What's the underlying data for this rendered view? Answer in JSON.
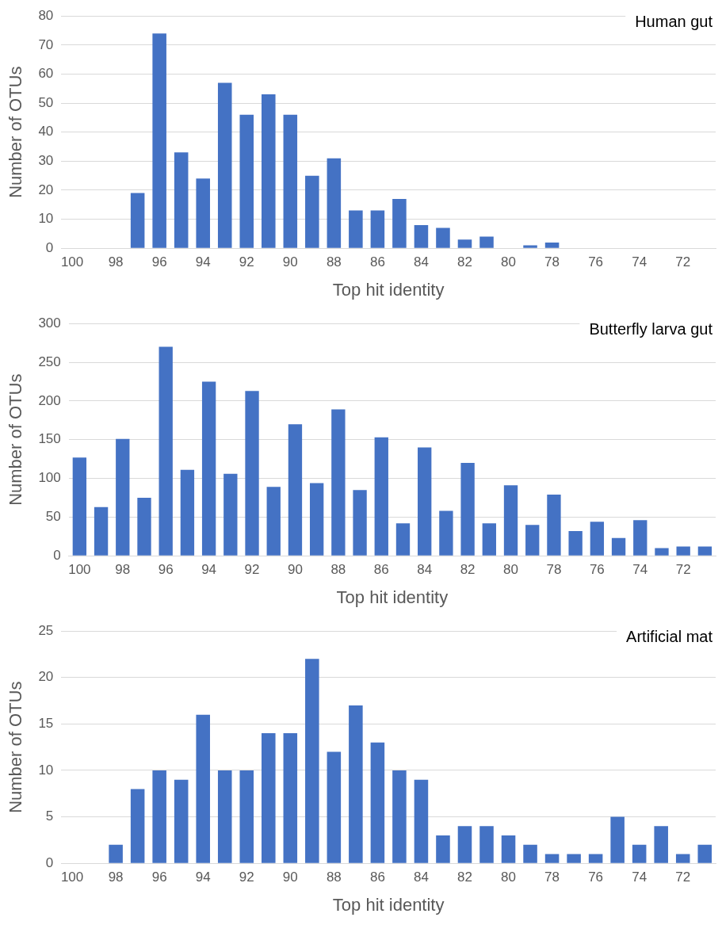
{
  "chart_data": [
    {
      "type": "bar",
      "title": "Human gut",
      "xlabel": "Top hit identity",
      "ylabel": "Number of OTUs",
      "categories": [
        "100",
        null,
        "98",
        null,
        "96",
        null,
        "94",
        null,
        "92",
        null,
        "90",
        null,
        "88",
        null,
        "86",
        null,
        "84",
        null,
        "82",
        null,
        "80",
        null,
        "78",
        null,
        "76",
        null,
        "74",
        null,
        "72",
        null
      ],
      "series": [
        {
          "color": "#4472c4",
          "values": [
            0,
            0,
            0,
            19,
            74,
            33,
            24,
            57,
            46,
            53,
            46,
            25,
            31,
            13,
            13,
            17,
            8,
            7,
            3,
            4,
            0,
            1,
            2,
            0,
            0,
            0,
            0,
            0,
            0,
            0
          ]
        }
      ],
      "ylim": [
        0,
        80
      ],
      "yticks": [
        0,
        10,
        20,
        30,
        40,
        50,
        60,
        70,
        80
      ],
      "grid": "y",
      "legend": false
    },
    {
      "type": "bar",
      "title": "Butterfly larva gut",
      "xlabel": "Top hit identity",
      "ylabel": "Number of OTUs",
      "categories": [
        "100",
        null,
        "98",
        null,
        "96",
        null,
        "94",
        null,
        "92",
        null,
        "90",
        null,
        "88",
        null,
        "86",
        null,
        "84",
        null,
        "82",
        null,
        "80",
        null,
        "78",
        null,
        "76",
        null,
        "74",
        null,
        "72",
        null
      ],
      "series": [
        {
          "color": "#4472c4",
          "values": [
            127,
            63,
            151,
            75,
            270,
            111,
            225,
            106,
            213,
            89,
            170,
            94,
            189,
            85,
            153,
            42,
            140,
            58,
            120,
            42,
            91,
            40,
            79,
            32,
            44,
            23,
            46,
            10,
            12,
            12
          ]
        }
      ],
      "ylim": [
        0,
        300
      ],
      "yticks": [
        0,
        50,
        100,
        150,
        200,
        250,
        300
      ],
      "grid": "y",
      "legend": false
    },
    {
      "type": "bar",
      "title": "Artificial mat",
      "xlabel": "Top hit identity",
      "ylabel": "Number of OTUs",
      "categories": [
        "100",
        null,
        "98",
        null,
        "96",
        null,
        "94",
        null,
        "92",
        null,
        "90",
        null,
        "88",
        null,
        "86",
        null,
        "84",
        null,
        "82",
        null,
        "80",
        null,
        "78",
        null,
        "76",
        null,
        "74",
        null,
        "72",
        null
      ],
      "series": [
        {
          "color": "#4472c4",
          "values": [
            0,
            0,
            2,
            8,
            10,
            9,
            16,
            10,
            10,
            14,
            14,
            22,
            12,
            17,
            13,
            10,
            9,
            3,
            4,
            4,
            3,
            2,
            1,
            1,
            1,
            5,
            2,
            4,
            1,
            2
          ]
        }
      ],
      "ylim": [
        0,
        25
      ],
      "yticks": [
        0,
        5,
        10,
        15,
        20,
        25
      ],
      "grid": "y",
      "legend": false
    }
  ]
}
